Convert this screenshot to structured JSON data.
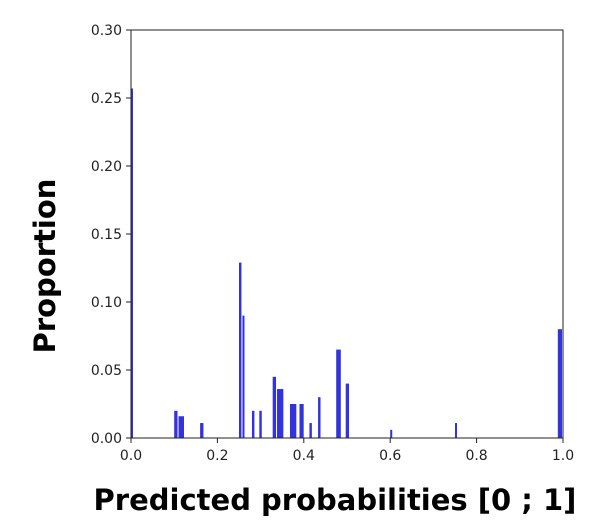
{
  "chart_data": {
    "type": "bar",
    "xlabel": "Predicted probabilities [0 ; 1]",
    "ylabel": "Proportion",
    "xlim": [
      0.0,
      1.0
    ],
    "ylim": [
      0.0,
      0.3
    ],
    "grid": false,
    "bar_color": "#3333dd",
    "x_ticks": [
      "0.0",
      "0.2",
      "0.4",
      "0.6",
      "0.8",
      "1.0"
    ],
    "y_ticks": [
      "0.00",
      "0.05",
      "0.10",
      "0.15",
      "0.20",
      "0.25",
      "0.30"
    ],
    "bins": [
      {
        "x0": 0.0,
        "x1": 0.005,
        "y": 0.257
      },
      {
        "x0": 0.1,
        "x1": 0.11,
        "y": 0.02
      },
      {
        "x0": 0.11,
        "x1": 0.125,
        "y": 0.016
      },
      {
        "x0": 0.16,
        "x1": 0.17,
        "y": 0.011
      },
      {
        "x0": 0.25,
        "x1": 0.258,
        "y": 0.129
      },
      {
        "x0": 0.258,
        "x1": 0.265,
        "y": 0.09
      },
      {
        "x0": 0.28,
        "x1": 0.288,
        "y": 0.02
      },
      {
        "x0": 0.297,
        "x1": 0.305,
        "y": 0.02
      },
      {
        "x0": 0.328,
        "x1": 0.338,
        "y": 0.045
      },
      {
        "x0": 0.338,
        "x1": 0.355,
        "y": 0.036
      },
      {
        "x0": 0.368,
        "x1": 0.385,
        "y": 0.025
      },
      {
        "x0": 0.39,
        "x1": 0.402,
        "y": 0.025
      },
      {
        "x0": 0.413,
        "x1": 0.421,
        "y": 0.011
      },
      {
        "x0": 0.433,
        "x1": 0.441,
        "y": 0.03
      },
      {
        "x0": 0.475,
        "x1": 0.488,
        "y": 0.065
      },
      {
        "x0": 0.497,
        "x1": 0.507,
        "y": 0.04
      },
      {
        "x0": 0.6,
        "x1": 0.607,
        "y": 0.006
      },
      {
        "x0": 0.75,
        "x1": 0.757,
        "y": 0.011
      },
      {
        "x0": 0.988,
        "x1": 1.0,
        "y": 0.08
      }
    ]
  }
}
